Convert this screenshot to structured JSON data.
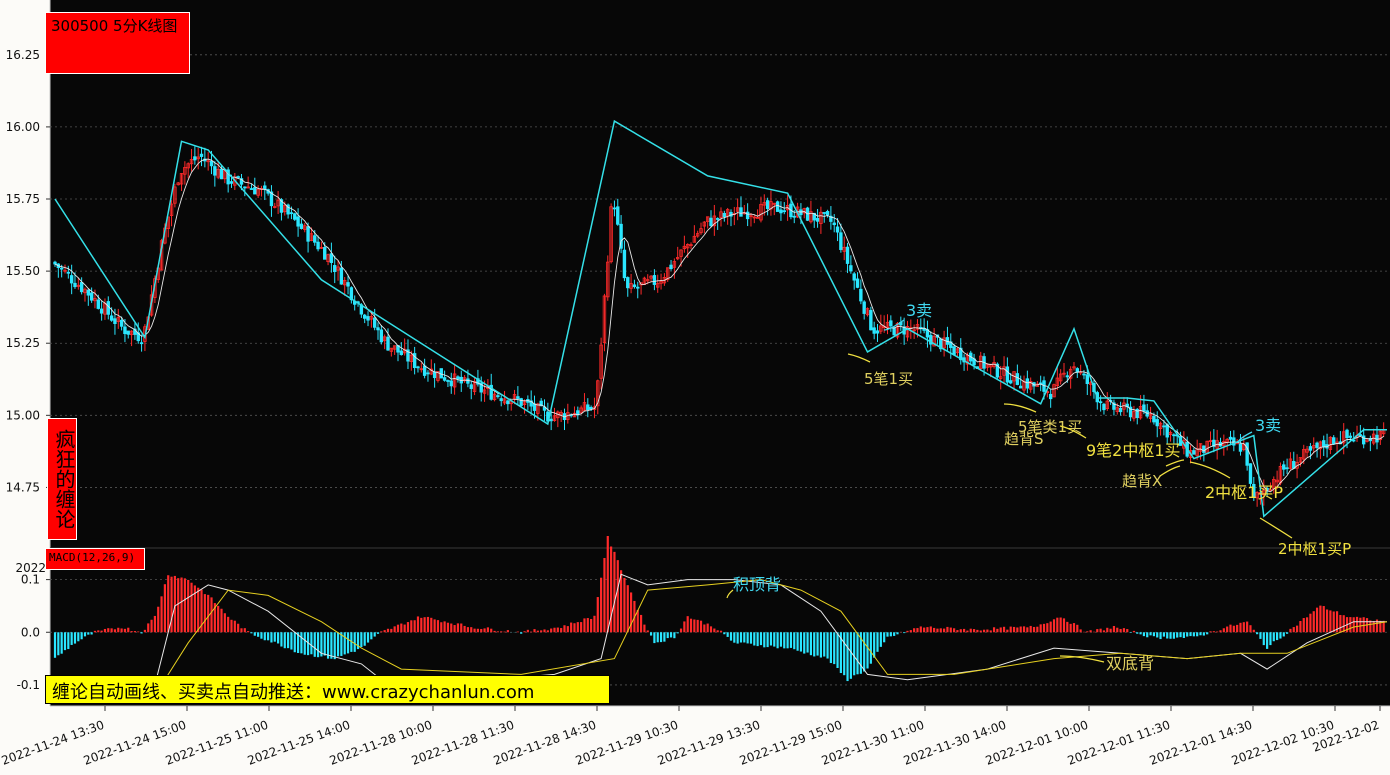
{
  "title": "300500 5分K线图",
  "side_label": "疯狂的缠论",
  "macd_label": "MACD(12,26,9)",
  "promo": "缠论自动画线、买卖点自动推送：www.crazychanlun.com",
  "colors": {
    "background": "#070707",
    "up": "#ff2a2a",
    "down": "#2ae6ff",
    "bi": "#34e0e8",
    "ma": "#e8e8e8",
    "dea": "#e6d020",
    "grid": "#555555",
    "label_cyan": "#40d8f0",
    "label_yellow": "#f0e040",
    "label_khaki": "#e0d060"
  },
  "chart_data": [
    {
      "type": "candlestick",
      "title": "300500 5分K线图",
      "ylim": [
        14.54,
        16.44
      ],
      "yticks": [
        "16.25",
        "16.00",
        "15.75",
        "15.50",
        "15.25",
        "15.00",
        "14.75"
      ],
      "grid": true,
      "x_ticks": [
        "2022-11-24 13:30",
        "2022-11-24 15:00",
        "2022-11-25 11:00",
        "2022-11-25 14:00",
        "2022-11-28 10:00",
        "2022-11-28 11:30",
        "2022-11-28 14:30",
        "2022-11-29 10:30",
        "2022-11-29 13:30",
        "2022-11-29 15:00",
        "2022-11-30 11:00",
        "2022-11-30 14:00",
        "2022-12-01 10:00",
        "2022-12-01 11:30",
        "2022-12-01 14:30",
        "2022-12-02 10:30",
        "2022-12-02"
      ],
      "price_keypoints": [
        [
          0,
          15.53
        ],
        [
          10,
          15.43
        ],
        [
          21,
          15.3
        ],
        [
          27,
          15.27
        ],
        [
          33,
          15.62
        ],
        [
          38,
          15.85
        ],
        [
          44,
          15.9
        ],
        [
          52,
          15.82
        ],
        [
          62,
          15.78
        ],
        [
          72,
          15.68
        ],
        [
          82,
          15.56
        ],
        [
          92,
          15.38
        ],
        [
          100,
          15.25
        ],
        [
          110,
          15.17
        ],
        [
          125,
          15.1
        ],
        [
          140,
          15.05
        ],
        [
          148,
          15.0
        ],
        [
          152,
          15.0
        ],
        [
          163,
          15.03
        ],
        [
          168,
          15.78
        ],
        [
          172,
          15.43
        ],
        [
          182,
          15.47
        ],
        [
          196,
          15.67
        ],
        [
          204,
          15.7
        ],
        [
          218,
          15.72
        ],
        [
          234,
          15.67
        ],
        [
          246,
          15.3
        ],
        [
          258,
          15.3
        ],
        [
          275,
          15.2
        ],
        [
          290,
          15.12
        ],
        [
          300,
          15.08
        ],
        [
          306,
          15.18
        ],
        [
          316,
          15.03
        ],
        [
          330,
          15.0
        ],
        [
          341,
          14.87
        ],
        [
          351,
          14.9
        ],
        [
          358,
          14.89
        ],
        [
          360,
          14.7
        ],
        [
          370,
          14.82
        ],
        [
          385,
          14.92
        ],
        [
          400,
          14.93
        ]
      ],
      "bi_polyline": [
        [
          0,
          15.75
        ],
        [
          27,
          15.27
        ],
        [
          38,
          15.95
        ],
        [
          46,
          15.92
        ],
        [
          80,
          15.47
        ],
        [
          148,
          14.97
        ],
        [
          168,
          16.02
        ],
        [
          196,
          15.83
        ],
        [
          220,
          15.77
        ],
        [
          244,
          15.22
        ],
        [
          256,
          15.3
        ],
        [
          296,
          15.04
        ],
        [
          306,
          15.3
        ],
        [
          313,
          15.06
        ],
        [
          322,
          15.06
        ],
        [
          330,
          15.05
        ],
        [
          342,
          14.85
        ],
        [
          360,
          14.93
        ],
        [
          363,
          14.65
        ],
        [
          393,
          14.95
        ],
        [
          400,
          14.95
        ]
      ],
      "annotations": [
        {
          "text": "3卖",
          "color": "cyan"
        },
        {
          "text": "5笔1买",
          "color": "khaki"
        },
        {
          "text": "趋背S",
          "color": "khaki"
        },
        {
          "text": "5笔类1买",
          "color": "khaki"
        },
        {
          "text": "9笔2中枢1买",
          "color": "yellow"
        },
        {
          "text": "3卖",
          "color": "cyan"
        },
        {
          "text": "趋背X",
          "color": "khaki"
        },
        {
          "text": "2中枢1买P",
          "color": "yellow"
        },
        {
          "text": "2中枢1买P",
          "color": "yellow"
        }
      ]
    },
    {
      "type": "bar",
      "title": "MACD(12,26,9)",
      "ylim": [
        -0.14,
        0.16
      ],
      "yticks": [
        "0.1",
        "0.0",
        "-0.1"
      ],
      "extra_tick": "2022",
      "hist_keypoints": [
        [
          0,
          -0.05
        ],
        [
          6,
          -0.02
        ],
        [
          12,
          0.0
        ],
        [
          20,
          0.01
        ],
        [
          26,
          0.0
        ],
        [
          30,
          0.03
        ],
        [
          34,
          0.11
        ],
        [
          40,
          0.1
        ],
        [
          46,
          0.07
        ],
        [
          52,
          0.03
        ],
        [
          58,
          0.0
        ],
        [
          64,
          -0.015
        ],
        [
          74,
          -0.04
        ],
        [
          84,
          -0.05
        ],
        [
          92,
          -0.03
        ],
        [
          98,
          0.0
        ],
        [
          110,
          0.03
        ],
        [
          125,
          0.01
        ],
        [
          140,
          0.0
        ],
        [
          152,
          0.01
        ],
        [
          162,
          0.03
        ],
        [
          166,
          0.18
        ],
        [
          170,
          0.12
        ],
        [
          176,
          0.03
        ],
        [
          180,
          -0.02
        ],
        [
          186,
          -0.01
        ],
        [
          190,
          0.03
        ],
        [
          198,
          0.01
        ],
        [
          204,
          -0.02
        ],
        [
          220,
          -0.03
        ],
        [
          232,
          -0.05
        ],
        [
          238,
          -0.09
        ],
        [
          244,
          -0.07
        ],
        [
          250,
          -0.01
        ],
        [
          260,
          0.01
        ],
        [
          276,
          0.005
        ],
        [
          294,
          0.01
        ],
        [
          302,
          0.03
        ],
        [
          310,
          0.0
        ],
        [
          318,
          0.01
        ],
        [
          330,
          -0.01
        ],
        [
          342,
          -0.01
        ],
        [
          352,
          0.01
        ],
        [
          358,
          0.02
        ],
        [
          364,
          -0.03
        ],
        [
          370,
          0.0
        ],
        [
          380,
          0.05
        ],
        [
          388,
          0.03
        ],
        [
          400,
          0.02
        ]
      ],
      "dif_keypoints": [
        [
          30,
          -0.1
        ],
        [
          36,
          0.05
        ],
        [
          46,
          0.09
        ],
        [
          52,
          0.08
        ],
        [
          64,
          0.04
        ],
        [
          80,
          -0.04
        ],
        [
          92,
          -0.06
        ],
        [
          100,
          -0.1
        ],
        [
          130,
          -0.09
        ],
        [
          150,
          -0.08
        ],
        [
          164,
          -0.05
        ],
        [
          170,
          0.11
        ],
        [
          178,
          0.09
        ],
        [
          190,
          0.1
        ],
        [
          204,
          0.1
        ],
        [
          218,
          0.09
        ],
        [
          230,
          0.04
        ],
        [
          244,
          -0.08
        ],
        [
          256,
          -0.09
        ],
        [
          280,
          -0.07
        ],
        [
          300,
          -0.03
        ],
        [
          320,
          -0.04
        ],
        [
          340,
          -0.05
        ],
        [
          356,
          -0.04
        ],
        [
          364,
          -0.07
        ],
        [
          376,
          -0.02
        ],
        [
          390,
          0.02
        ],
        [
          400,
          0.02
        ]
      ],
      "dea_keypoints": [
        [
          30,
          -0.12
        ],
        [
          40,
          -0.02
        ],
        [
          52,
          0.08
        ],
        [
          64,
          0.07
        ],
        [
          80,
          0.02
        ],
        [
          92,
          -0.03
        ],
        [
          104,
          -0.07
        ],
        [
          140,
          -0.08
        ],
        [
          168,
          -0.05
        ],
        [
          178,
          0.08
        ],
        [
          196,
          0.09
        ],
        [
          212,
          0.1
        ],
        [
          224,
          0.08
        ],
        [
          236,
          0.04
        ],
        [
          250,
          -0.08
        ],
        [
          270,
          -0.08
        ],
        [
          300,
          -0.05
        ],
        [
          320,
          -0.04
        ],
        [
          340,
          -0.05
        ],
        [
          356,
          -0.04
        ],
        [
          370,
          -0.04
        ],
        [
          390,
          0.01
        ],
        [
          400,
          0.02
        ]
      ],
      "annotations": [
        {
          "text": "积顶背",
          "color": "cyan"
        },
        {
          "text": "双底背",
          "color": "khaki"
        }
      ]
    }
  ]
}
